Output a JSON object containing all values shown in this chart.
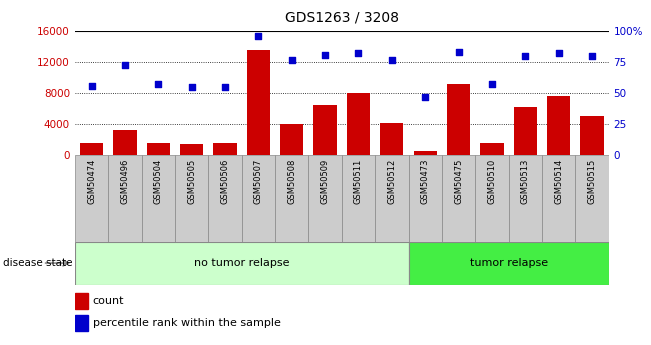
{
  "title": "GDS1263 / 3208",
  "samples": [
    "GSM50474",
    "GSM50496",
    "GSM50504",
    "GSM50505",
    "GSM50506",
    "GSM50507",
    "GSM50508",
    "GSM50509",
    "GSM50511",
    "GSM50512",
    "GSM50473",
    "GSM50475",
    "GSM50510",
    "GSM50513",
    "GSM50514",
    "GSM50515"
  ],
  "counts": [
    1600,
    3200,
    1600,
    1500,
    1600,
    13500,
    4000,
    6500,
    8000,
    4200,
    500,
    9200,
    1600,
    6200,
    7600,
    5000
  ],
  "percentiles": [
    56,
    73,
    57,
    55,
    55,
    96,
    77,
    81,
    82,
    77,
    47,
    83,
    57,
    80,
    82,
    80
  ],
  "no_tumor_count": 10,
  "tumor_count": 6,
  "bar_color": "#cc0000",
  "dot_color": "#0000cc",
  "no_tumor_color": "#ccffcc",
  "tumor_color": "#44ee44",
  "tick_label_color_left": "#cc0000",
  "tick_label_color_right": "#0000cc",
  "ylim_left": [
    0,
    16000
  ],
  "ylim_right": [
    0,
    100
  ],
  "yticks_left": [
    0,
    4000,
    8000,
    12000,
    16000
  ],
  "yticks_right": [
    0,
    25,
    50,
    75,
    100
  ],
  "yticklabels_right": [
    "0",
    "25",
    "50",
    "75",
    "100%"
  ]
}
